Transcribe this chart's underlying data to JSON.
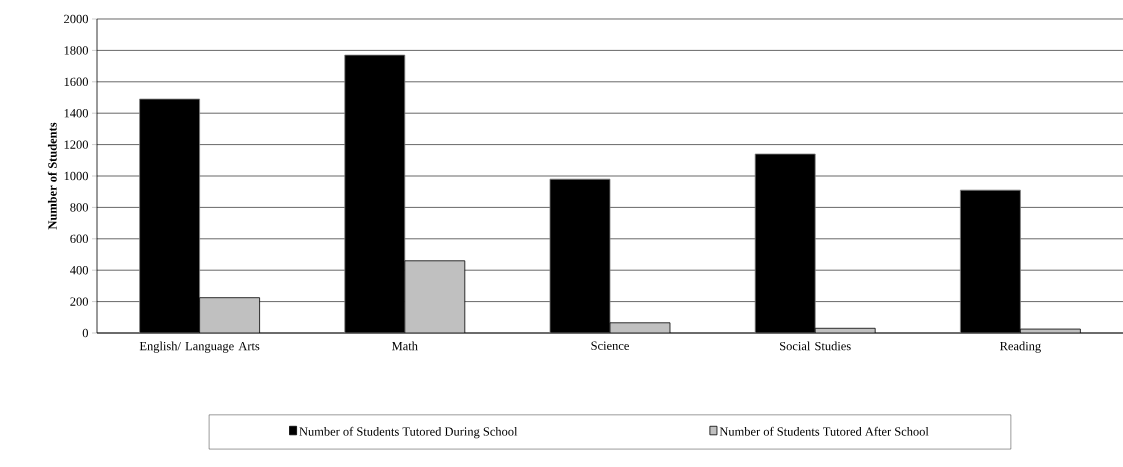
{
  "chart_data": {
    "type": "bar",
    "ylabel": "Number of Students",
    "categories": [
      "English/ Language Arts",
      "Math",
      "Science",
      "Social Studies",
      "Reading"
    ],
    "series": [
      {
        "name": "Number of Students Tutored During School",
        "color": "#000000",
        "values": [
          1490,
          1770,
          980,
          1140,
          910
        ]
      },
      {
        "name": "Number of Students Tutored After School",
        "color": "#c0c0c0",
        "values": [
          225,
          460,
          65,
          30,
          25
        ]
      }
    ],
    "ylim": [
      0,
      2000
    ],
    "yticks": [
      0,
      200,
      400,
      600,
      800,
      1000,
      1200,
      1400,
      1600,
      1800,
      2000
    ],
    "grid": "y",
    "legend": "bottom"
  }
}
